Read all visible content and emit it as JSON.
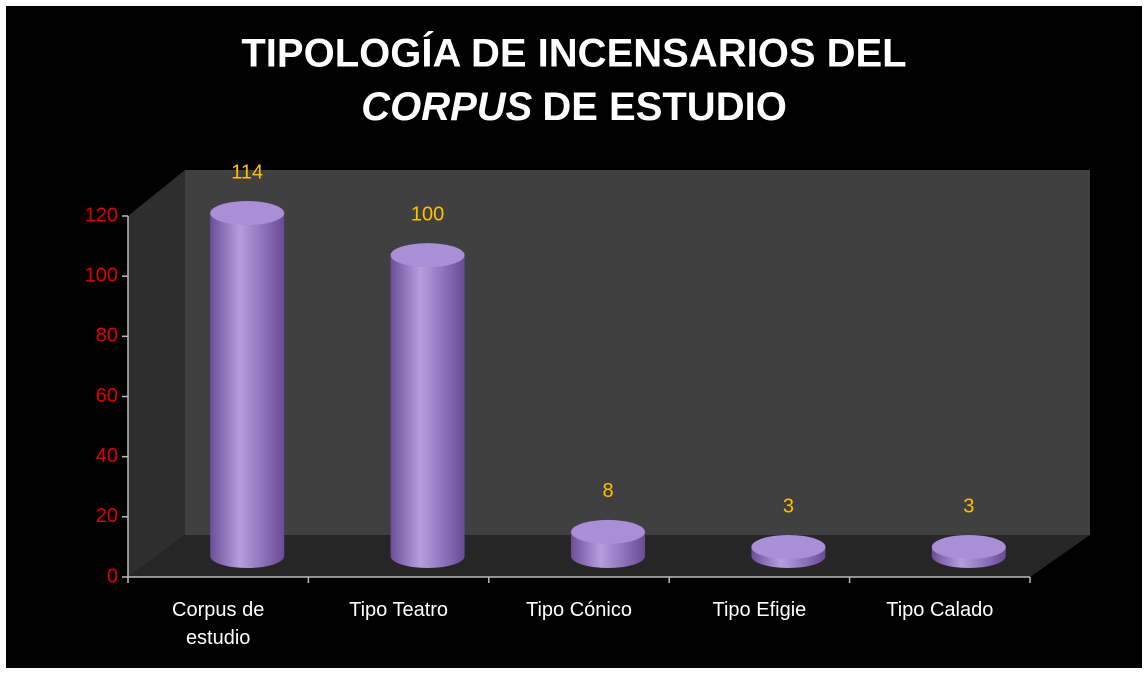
{
  "chart_data": {
    "type": "bar3d",
    "title": [
      "TIPOLOGÍA  DE INCENSARIOS DEL",
      "CORPUS",
      "DE ESTUDIO"
    ],
    "categories": [
      "Corpus de estudio",
      "Tipo Teatro",
      "Tipo Cónico",
      "Tipo Efigie",
      "Tipo Calado"
    ],
    "values": [
      114,
      100,
      8,
      3,
      3
    ],
    "color": "#9b7fcf",
    "ylim": [
      0,
      120
    ],
    "yticks": [
      0,
      20,
      40,
      60,
      80,
      100,
      120
    ]
  }
}
